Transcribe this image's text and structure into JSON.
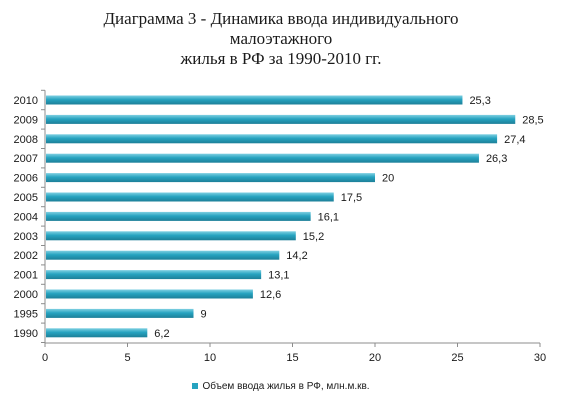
{
  "chart_data": {
    "type": "bar",
    "orientation": "horizontal",
    "title_lines": [
      "Диаграмма  3 - Динамика ввода индивидуального",
      "малоэтажного",
      "жилья в РФ за 1990-2010  гг."
    ],
    "categories": [
      "2010",
      "2009",
      "2008",
      "2007",
      "2006",
      "2005",
      "2004",
      "2003",
      "2002",
      "2001",
      "2000",
      "1995",
      "1990"
    ],
    "series": [
      {
        "name": "Объем ввода жилья в РФ, млн.м.кв.",
        "values": [
          25.3,
          28.5,
          27.4,
          26.3,
          20,
          17.5,
          16.1,
          15.2,
          14.2,
          13.1,
          12.6,
          9,
          6.2
        ],
        "labels": [
          "25,3",
          "28,5",
          "27,4",
          "26,3",
          "20",
          "17,5",
          "16,1",
          "15,2",
          "14,2",
          "13,1",
          "12,6",
          "9",
          "6,2"
        ]
      }
    ],
    "x_ticks": [
      "0",
      "5",
      "10",
      "15",
      "20",
      "25",
      "30"
    ],
    "xlim": [
      0,
      30
    ],
    "xlabel": "",
    "ylabel": "",
    "grid": false,
    "legend_position": "bottom",
    "bar_color": "#26a3c0",
    "bar_highlight_color": "#7fd0e2",
    "bar_shadow_color": "#1d7f98"
  }
}
